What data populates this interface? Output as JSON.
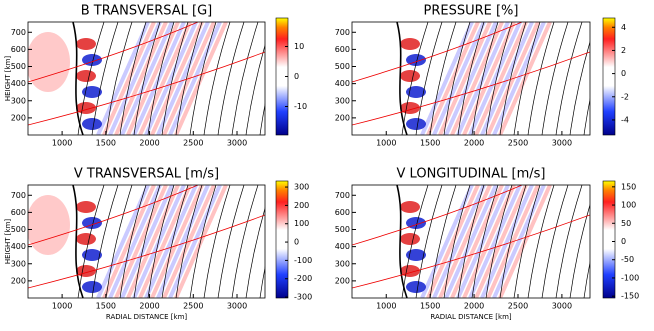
{
  "chart_data": [
    {
      "type": "heatmap",
      "title": "B TRANSVERSAL [G]",
      "ylabel": "HEIGHT [km]",
      "xlim": [
        610,
        3320
      ],
      "xticks": [
        1000,
        1500,
        2000,
        2500,
        3000
      ],
      "ylim": [
        100,
        760
      ],
      "yticks": [
        200,
        300,
        400,
        500,
        600,
        700
      ],
      "colorbar": {
        "lim": [
          -19.5,
          19.5
        ],
        "ticks": [
          -10,
          0,
          10
        ]
      }
    },
    {
      "type": "heatmap",
      "title": "PRESSURE [%]",
      "xlim": [
        610,
        3320
      ],
      "xticks": [
        1000,
        1500,
        2000,
        2500,
        3000
      ],
      "ylim": [
        100,
        760
      ],
      "yticks": [
        200,
        300,
        400,
        500,
        600,
        700
      ],
      "colorbar": {
        "lim": [
          -5.3,
          4.8
        ],
        "ticks": [
          -4,
          -2,
          0,
          2,
          4
        ]
      }
    },
    {
      "type": "heatmap",
      "title": "V TRANSVERSAL [m/s]",
      "ylabel": "HEIGHT [km]",
      "xlabel": "RADIAL DISTANCE [km]",
      "xlim": [
        610,
        3320
      ],
      "xticks": [
        1000,
        1500,
        2000,
        2500,
        3000
      ],
      "ylim": [
        100,
        760
      ],
      "yticks": [
        200,
        300,
        400,
        500,
        600,
        700
      ],
      "colorbar": {
        "lim": [
          -305,
          333
        ],
        "ticks": [
          -300,
          -200,
          -100,
          0,
          100,
          200,
          300
        ]
      }
    },
    {
      "type": "heatmap",
      "title": "V LONGITUDINAL [m/s]",
      "xlabel": "RADIAL DISTANCE [km]",
      "xlim": [
        610,
        3320
      ],
      "xticks": [
        1000,
        1500,
        2000,
        2500,
        3000
      ],
      "ylim": [
        100,
        760
      ],
      "yticks": [
        200,
        300,
        400,
        500,
        600,
        700
      ],
      "colorbar": {
        "lim": [
          -155,
          166
        ],
        "ticks": [
          -150,
          -100,
          -50,
          0,
          50,
          100,
          150
        ]
      }
    }
  ]
}
